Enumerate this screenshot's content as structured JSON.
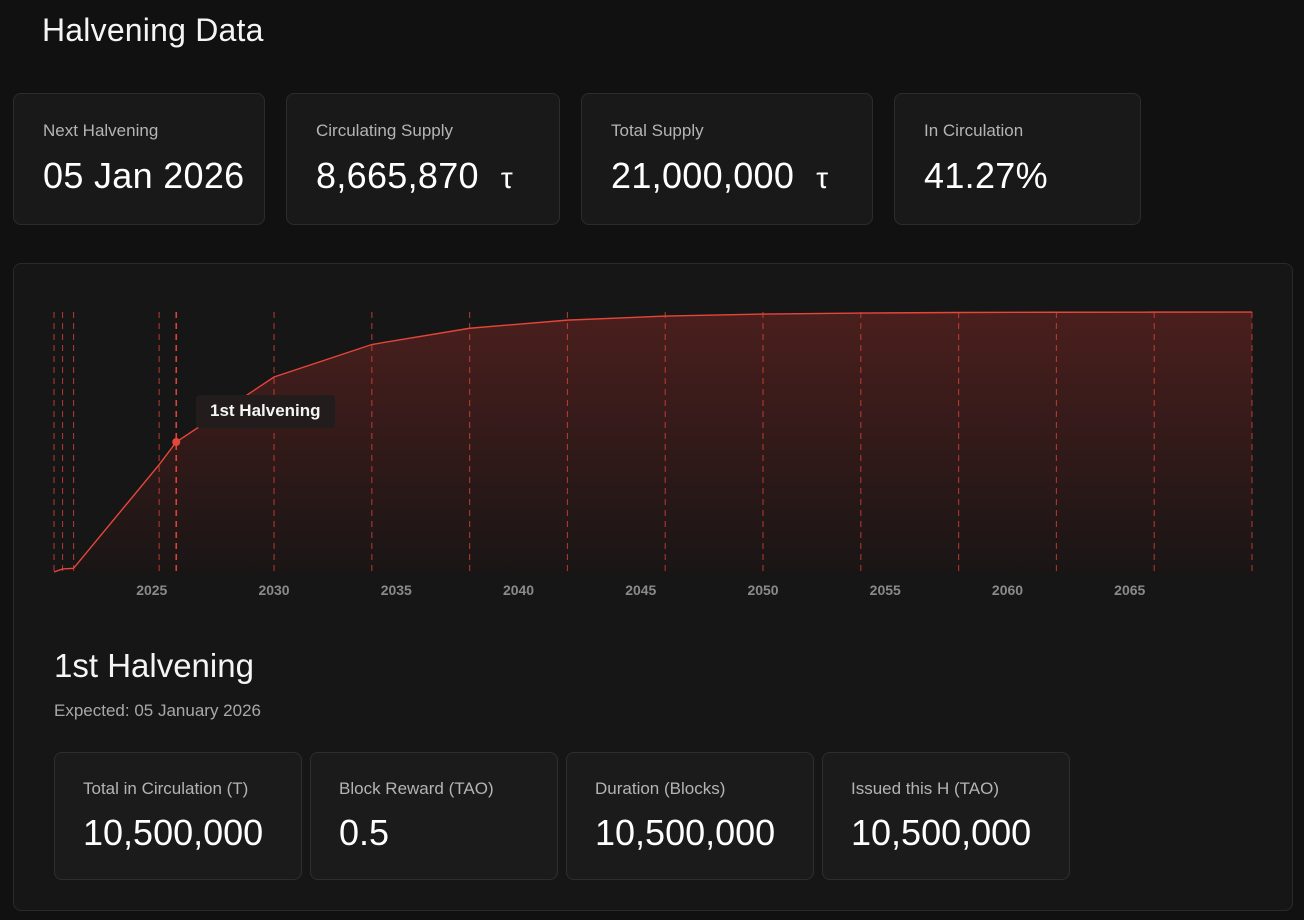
{
  "page": {
    "title": "Halvening Data"
  },
  "stats": [
    {
      "label": "Next Halvening",
      "value": "05 Jan 2026",
      "unit": ""
    },
    {
      "label": "Circulating Supply",
      "value": "8,665,870",
      "unit": "τ"
    },
    {
      "label": "Total Supply",
      "value": "21,000,000",
      "unit": "τ"
    },
    {
      "label": "In Circulation",
      "value": "41.27%",
      "unit": ""
    }
  ],
  "chart_data": {
    "type": "area",
    "title": "",
    "xlabel": "",
    "ylabel": "",
    "x_ticks": [
      2025,
      2030,
      2035,
      2040,
      2045,
      2050,
      2055,
      2060,
      2065
    ],
    "xlim": [
      2021,
      2070
    ],
    "ylim": [
      0,
      21000000
    ],
    "grid": false,
    "legend": "none",
    "series": [
      {
        "color": "#e5463a",
        "points": [
          {
            "x": 2021.0,
            "y": 0
          },
          {
            "x": 2021.35,
            "y": 250000
          },
          {
            "x": 2021.8,
            "y": 300000
          },
          {
            "x": 2025.3,
            "y": 8665870
          },
          {
            "x": 2026.0,
            "y": 10500000
          },
          {
            "x": 2030.0,
            "y": 15750000
          },
          {
            "x": 2034.0,
            "y": 18375000
          },
          {
            "x": 2038.0,
            "y": 19687500
          },
          {
            "x": 2042.0,
            "y": 20343750
          },
          {
            "x": 2046.0,
            "y": 20671875
          },
          {
            "x": 2050.0,
            "y": 20835937
          },
          {
            "x": 2054.0,
            "y": 20917968
          },
          {
            "x": 2058.0,
            "y": 20958984
          },
          {
            "x": 2062.0,
            "y": 20979492
          },
          {
            "x": 2066.0,
            "y": 20989746
          },
          {
            "x": 2070.0,
            "y": 20994873
          }
        ]
      }
    ],
    "markers": [
      2021.0,
      2021.35,
      2021.8,
      2025.3,
      2026.0,
      2030.0,
      2034.0,
      2038.0,
      2042.0,
      2046.0,
      2050.0,
      2054.0,
      2058.0,
      2062.0,
      2066.0,
      2070.0
    ],
    "highlight": {
      "x": 2026.0,
      "y": 10500000,
      "label": "1st Halvening"
    }
  },
  "detail": {
    "title": "1st Halvening",
    "subtitle": "Expected: 05 January 2026",
    "cards": [
      {
        "label": "Total in Circulation (T)",
        "value": "10,500,000"
      },
      {
        "label": "Block Reward (TAO)",
        "value": "0.5"
      },
      {
        "label": "Duration (Blocks)",
        "value": "10,500,000"
      },
      {
        "label": "Issued this H (TAO)",
        "value": "10,500,000"
      }
    ]
  },
  "colors": {
    "accent": "#e5463a",
    "background": "#111111",
    "card": "#191919"
  }
}
